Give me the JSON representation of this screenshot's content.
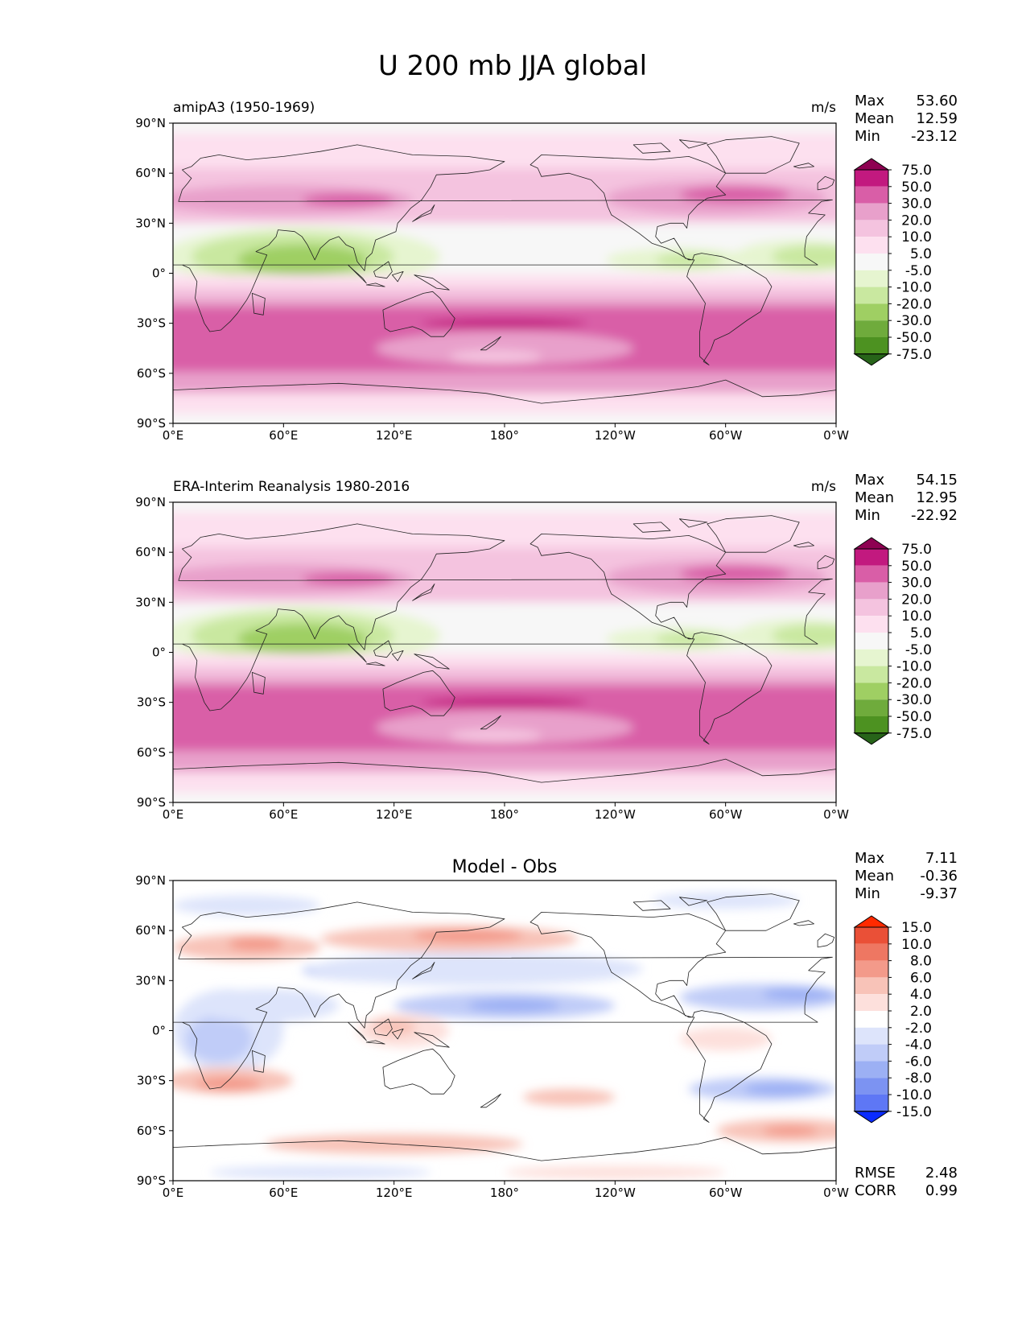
{
  "figure_title": "U 200 mb JJA global",
  "colors": {
    "positive_ramp": [
      "#f7f7f7",
      "#fde0ef",
      "#f4c3df",
      "#e8a0cb",
      "#d95ea7",
      "#c2197f",
      "#8e0152"
    ],
    "negative_ramp": [
      "#f7f7f7",
      "#e6f5d0",
      "#c9e8a0",
      "#9fcf63",
      "#6fab3c",
      "#4d9221",
      "#276419"
    ],
    "diff_positive": [
      "#ffffff",
      "#fde0dc",
      "#f8c3b8",
      "#f39a8a",
      "#ee7762",
      "#ea5037",
      "#ff2a00"
    ],
    "diff_negative": [
      "#ffffff",
      "#dde4fb",
      "#c0ccf8",
      "#9cb0f4",
      "#7c93f2",
      "#5e77f5",
      "#0a2bff"
    ]
  },
  "chart_data": [
    {
      "type": "heatmap",
      "title": "amipA3 (1950-1969)",
      "units": "m/s",
      "stats": [
        {
          "label": "Max",
          "value": "53.60"
        },
        {
          "label": "Mean",
          "value": "12.59"
        },
        {
          "label": "Min",
          "value": "-23.12"
        }
      ],
      "xlim": [
        0,
        360
      ],
      "ylim": [
        -90,
        90
      ],
      "xticks": [
        "0°E",
        "60°E",
        "120°E",
        "180°",
        "120°W",
        "60°W",
        "0°W"
      ],
      "yticks": [
        "90°N",
        "60°N",
        "30°N",
        "0°",
        "30°S",
        "60°S",
        "90°S"
      ],
      "colorbar_levels": [
        "75.0",
        "50.0",
        "30.0",
        "20.0",
        "10.0",
        "5.0",
        "-5.0",
        "-10.0",
        "-20.0",
        "-30.0",
        "-50.0",
        "-75.0"
      ]
    },
    {
      "type": "heatmap",
      "title": "ERA-Interim Reanalysis 1980-2016",
      "units": "m/s",
      "stats": [
        {
          "label": "Max",
          "value": "54.15"
        },
        {
          "label": "Mean",
          "value": "12.95"
        },
        {
          "label": "Min",
          "value": "-22.92"
        }
      ],
      "xlim": [
        0,
        360
      ],
      "ylim": [
        -90,
        90
      ],
      "xticks": [
        "0°E",
        "60°E",
        "120°E",
        "180°",
        "120°W",
        "60°W",
        "0°W"
      ],
      "yticks": [
        "90°N",
        "60°N",
        "30°N",
        "0°",
        "30°S",
        "60°S",
        "90°S"
      ],
      "colorbar_levels": [
        "75.0",
        "50.0",
        "30.0",
        "20.0",
        "10.0",
        "5.0",
        "-5.0",
        "-10.0",
        "-20.0",
        "-30.0",
        "-50.0",
        "-75.0"
      ]
    },
    {
      "type": "heatmap",
      "title": "Model - Obs",
      "units": "",
      "stats": [
        {
          "label": "Max",
          "value": "7.11"
        },
        {
          "label": "Mean",
          "value": "-0.36"
        },
        {
          "label": "Min",
          "value": "-9.37"
        }
      ],
      "metrics": [
        {
          "label": "RMSE",
          "value": "2.48"
        },
        {
          "label": "CORR",
          "value": "0.99"
        }
      ],
      "xlim": [
        0,
        360
      ],
      "ylim": [
        -90,
        90
      ],
      "xticks": [
        "0°E",
        "60°E",
        "120°E",
        "180°",
        "120°W",
        "60°W",
        "0°W"
      ],
      "yticks": [
        "90°N",
        "60°N",
        "30°N",
        "0°",
        "30°S",
        "60°S",
        "90°S"
      ],
      "colorbar_levels": [
        "15.0",
        "10.0",
        "8.0",
        "6.0",
        "4.0",
        "2.0",
        "-2.0",
        "-4.0",
        "-6.0",
        "-8.0",
        "-10.0",
        "-15.0"
      ]
    }
  ]
}
